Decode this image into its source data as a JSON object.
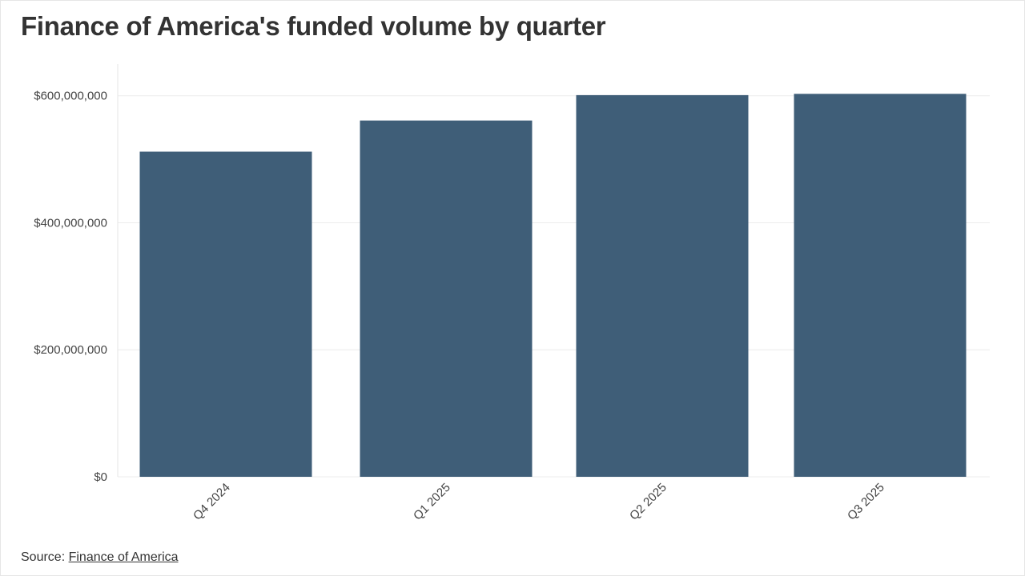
{
  "chart_data": {
    "type": "bar",
    "title": "Finance of America's funded volume by quarter",
    "categories": [
      "Q4 2024",
      "Q1 2025",
      "Q2 2025",
      "Q3 2025"
    ],
    "values": [
      512000000,
      561000000,
      601000000,
      603000000
    ],
    "yticks": [
      0,
      200000000,
      400000000,
      600000000
    ],
    "ytick_labels": [
      "$0",
      "$200,000,000",
      "$400,000,000",
      "$600,000,000"
    ],
    "ylim": [
      0,
      650000000
    ],
    "xlabel": "",
    "ylabel": "",
    "grid": true,
    "bar_color": "#3f5e78"
  },
  "source": {
    "prefix": "Source:",
    "link_text": "Finance of America"
  }
}
